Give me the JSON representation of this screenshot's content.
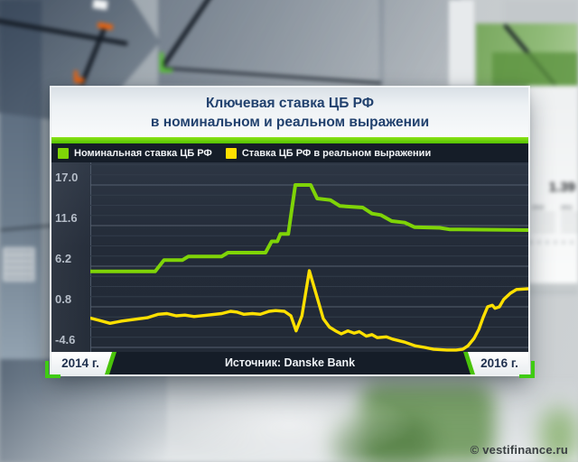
{
  "panel": {
    "title_line1": "Ключевая ставка ЦБ РФ",
    "title_line2": "в номинальном и реальном выражении",
    "footer": {
      "left_year": "2014 г.",
      "source": "Источник: Danske Bank",
      "right_year": "2016 г."
    }
  },
  "background": {
    "big_value": "1.39",
    "timeline_year_left": "2010",
    "timeline_year_right": "2011"
  },
  "watermark": "© vestifinance.ru",
  "chart_data": {
    "type": "line",
    "title": "Ключевая ставка ЦБ РФ в номинальном и реальном выражении",
    "source": "Danske Bank",
    "x_range_labels": [
      "2014 г.",
      "2016 г."
    ],
    "y_ticks": [
      "17.0",
      "11.6",
      "6.2",
      "0.8",
      "-4.6"
    ],
    "ylim": [
      -5.2,
      20.0
    ],
    "grid_minor_step": 1.35,
    "grid": "on",
    "legend_position": "top",
    "colors": {
      "plot_bg": "#232b38",
      "grid_major": "#545f6e",
      "grid_minor": "#323c4a",
      "accent_green_bar": "#54c103",
      "legend_bg": "#151d28"
    },
    "series": [
      {
        "name": "Номинальная ставка ЦБ РФ",
        "color": "#7fd407",
        "width": 4,
        "points": [
          [
            0.0,
            5.5
          ],
          [
            0.148,
            5.5
          ],
          [
            0.168,
            7.0
          ],
          [
            0.21,
            7.0
          ],
          [
            0.224,
            7.5
          ],
          [
            0.3,
            7.5
          ],
          [
            0.314,
            8.0
          ],
          [
            0.4,
            8.0
          ],
          [
            0.414,
            9.5
          ],
          [
            0.427,
            9.5
          ],
          [
            0.434,
            10.5
          ],
          [
            0.452,
            10.5
          ],
          [
            0.468,
            17.0
          ],
          [
            0.503,
            17.0
          ],
          [
            0.518,
            15.2
          ],
          [
            0.548,
            15.0
          ],
          [
            0.57,
            14.2
          ],
          [
            0.622,
            14.0
          ],
          [
            0.643,
            13.2
          ],
          [
            0.663,
            13.0
          ],
          [
            0.688,
            12.2
          ],
          [
            0.718,
            12.0
          ],
          [
            0.74,
            11.4
          ],
          [
            0.798,
            11.3
          ],
          [
            0.82,
            11.1
          ],
          [
            1.0,
            11.0
          ]
        ]
      },
      {
        "name": "Ставка ЦБ РФ в реальном выражении",
        "color": "#ffe000",
        "width": 3.4,
        "points": [
          [
            0.0,
            -0.7
          ],
          [
            0.02,
            -1.0
          ],
          [
            0.045,
            -1.4
          ],
          [
            0.072,
            -1.1
          ],
          [
            0.097,
            -0.9
          ],
          [
            0.13,
            -0.65
          ],
          [
            0.155,
            -0.2
          ],
          [
            0.175,
            -0.1
          ],
          [
            0.196,
            -0.4
          ],
          [
            0.216,
            -0.3
          ],
          [
            0.237,
            -0.5
          ],
          [
            0.268,
            -0.3
          ],
          [
            0.3,
            -0.1
          ],
          [
            0.32,
            0.2
          ],
          [
            0.334,
            0.1
          ],
          [
            0.35,
            -0.2
          ],
          [
            0.37,
            -0.1
          ],
          [
            0.388,
            -0.2
          ],
          [
            0.408,
            0.2
          ],
          [
            0.423,
            0.3
          ],
          [
            0.443,
            0.2
          ],
          [
            0.458,
            -0.4
          ],
          [
            0.47,
            -2.4
          ],
          [
            0.483,
            -0.4
          ],
          [
            0.5,
            5.6
          ],
          [
            0.515,
            2.6
          ],
          [
            0.532,
            -0.8
          ],
          [
            0.546,
            -1.9
          ],
          [
            0.56,
            -2.4
          ],
          [
            0.573,
            -2.8
          ],
          [
            0.588,
            -2.4
          ],
          [
            0.602,
            -2.7
          ],
          [
            0.614,
            -2.5
          ],
          [
            0.63,
            -3.1
          ],
          [
            0.643,
            -2.9
          ],
          [
            0.655,
            -3.3
          ],
          [
            0.676,
            -3.2
          ],
          [
            0.69,
            -3.5
          ],
          [
            0.718,
            -3.9
          ],
          [
            0.742,
            -4.4
          ],
          [
            0.763,
            -4.6
          ],
          [
            0.784,
            -4.85
          ],
          [
            0.814,
            -4.95
          ],
          [
            0.835,
            -4.95
          ],
          [
            0.85,
            -4.85
          ],
          [
            0.862,
            -4.4
          ],
          [
            0.876,
            -3.4
          ],
          [
            0.887,
            -2.2
          ],
          [
            0.897,
            -0.6
          ],
          [
            0.907,
            0.8
          ],
          [
            0.918,
            1.0
          ],
          [
            0.924,
            0.6
          ],
          [
            0.934,
            0.8
          ],
          [
            0.944,
            1.8
          ],
          [
            0.959,
            2.6
          ],
          [
            0.973,
            3.1
          ],
          [
            1.0,
            3.2
          ]
        ]
      }
    ]
  }
}
